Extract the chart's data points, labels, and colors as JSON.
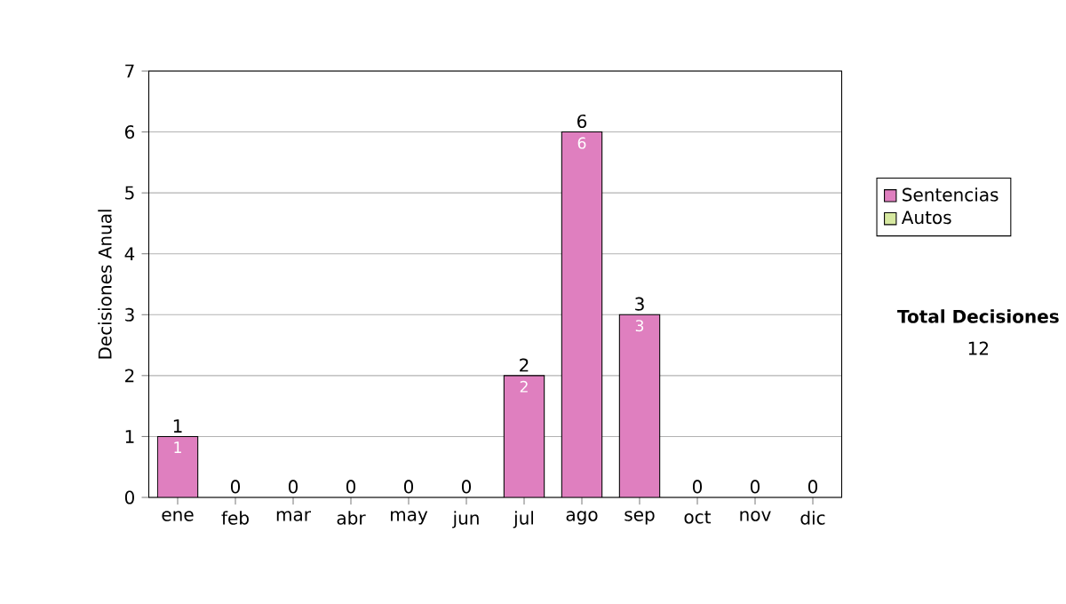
{
  "chart_data": {
    "type": "bar",
    "stacked": true,
    "ylabel": "Decisiones Anual",
    "categories": [
      "ene",
      "feb",
      "mar",
      "abr",
      "may",
      "jun",
      "jul",
      "ago",
      "sep",
      "oct",
      "nov",
      "dic"
    ],
    "series": [
      {
        "name": "Sentencias",
        "color": "#df7fbf",
        "values": [
          1,
          0,
          0,
          0,
          0,
          0,
          2,
          6,
          3,
          0,
          0,
          0
        ],
        "value_labels": [
          "1",
          null,
          null,
          null,
          null,
          null,
          "2",
          "6",
          "3",
          null,
          null,
          null
        ]
      },
      {
        "name": "Autos",
        "color": "#d6e8a0",
        "values": [
          0,
          0,
          0,
          0,
          0,
          0,
          0,
          0,
          0,
          0,
          0,
          0
        ]
      }
    ],
    "totals": [
      "1",
      "0",
      "0",
      "0",
      "0",
      "0",
      "2",
      "6",
      "3",
      "0",
      "0",
      "0"
    ],
    "ylim": [
      0,
      7
    ],
    "yticks": [
      0,
      1,
      2,
      3,
      4,
      5,
      6,
      7
    ],
    "grid": "y",
    "legend": "right",
    "annotations": [
      "Total Decisiones",
      "12"
    ]
  }
}
